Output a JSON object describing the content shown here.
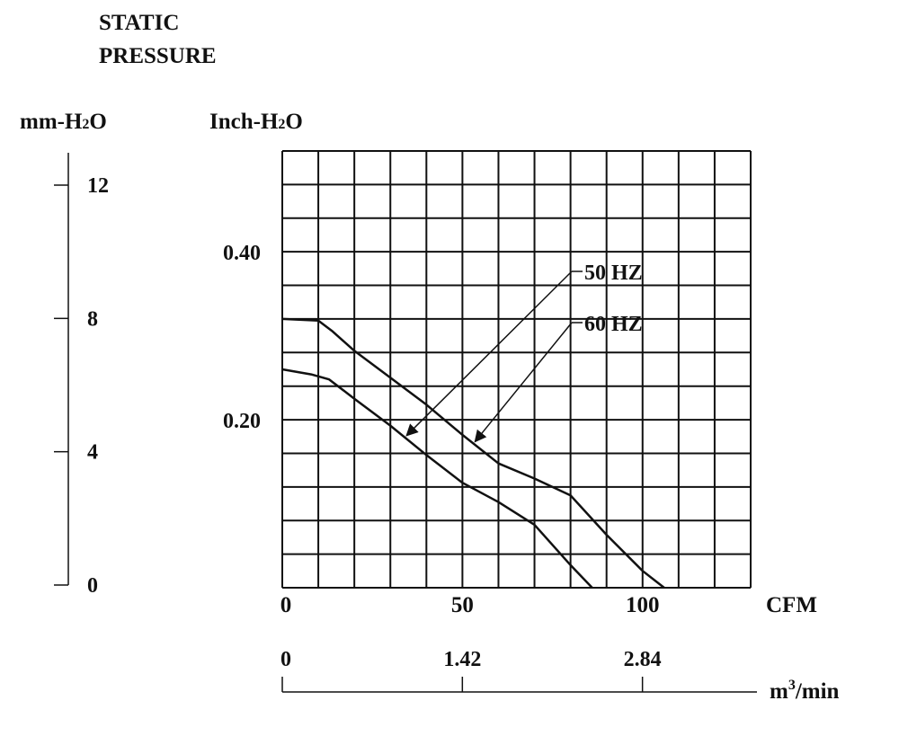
{
  "chart_data": {
    "type": "line",
    "title_line1": "STATIC",
    "title_line2": "PRESSURE",
    "left_unit_main": "mm-H",
    "left_unit_sub": "2",
    "left_unit_end": "O",
    "inch_unit_main": "Inch-H",
    "inch_unit_sub": "2",
    "inch_unit_end": "O",
    "x_unit": "CFM",
    "m3_unit_main": "m",
    "m3_unit_sup": "3",
    "m3_unit_end": "/min",
    "xlim": [
      0,
      130
    ],
    "ylim_inch": [
      0,
      0.52
    ],
    "mm_ticks": [
      "12",
      "8",
      "4",
      "0"
    ],
    "inch_ticks": [
      "0.40",
      "0.20"
    ],
    "cfm_ticks": [
      "0",
      "50",
      "100"
    ],
    "m3_ticks": [
      "0",
      "1.42",
      "2.84"
    ],
    "grid": true,
    "series": [
      {
        "name": "50 HZ",
        "x": [
          0,
          8,
          13,
          20,
          30,
          40,
          50,
          60,
          70,
          80,
          86
        ],
        "y": [
          0.26,
          0.254,
          0.248,
          0.225,
          0.193,
          0.158,
          0.125,
          0.102,
          0.075,
          0.027,
          0.0
        ]
      },
      {
        "name": "60 HZ",
        "x": [
          0,
          10,
          14,
          20,
          30,
          40,
          50,
          60,
          70,
          80,
          90,
          100,
          106
        ],
        "y": [
          0.32,
          0.318,
          0.305,
          0.282,
          0.25,
          0.218,
          0.182,
          0.148,
          0.13,
          0.11,
          0.063,
          0.02,
          0.0
        ]
      }
    ]
  }
}
